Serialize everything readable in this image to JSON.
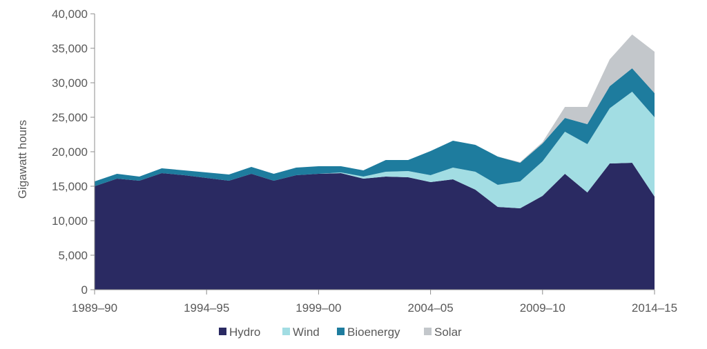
{
  "chart_data": {
    "type": "area",
    "stacked": true,
    "title": "",
    "xlabel": "",
    "ylabel": "Gigawatt hours",
    "ylim": [
      0,
      40000
    ],
    "yticks": [
      0,
      5000,
      10000,
      15000,
      20000,
      25000,
      30000,
      35000,
      40000
    ],
    "ytick_labels": [
      "0",
      "5,000",
      "10,000",
      "15,000",
      "20,000",
      "25,000",
      "30,000",
      "35,000",
      "40,000"
    ],
    "x": [
      "1989–90",
      "1990–91",
      "1991–92",
      "1992–93",
      "1993–94",
      "1994–95",
      "1995–96",
      "1996–97",
      "1997–98",
      "1998–99",
      "1999–00",
      "2000–01",
      "2001–02",
      "2002–03",
      "2003–04",
      "2004–05",
      "2005–06",
      "2006–07",
      "2007–08",
      "2008–09",
      "2009–10",
      "2010–11",
      "2011–12",
      "2012–13",
      "2013–14",
      "2014–15"
    ],
    "xtick_labels": [
      "1989–90",
      "1994–95",
      "1999–00",
      "2004–05",
      "2009–10",
      "2014–15"
    ],
    "grid": false,
    "legend": "bottom",
    "series": [
      {
        "name": "Hydro",
        "color": "#2a2a62",
        "values": [
          15000,
          16100,
          15800,
          16900,
          16600,
          16200,
          15800,
          16800,
          15800,
          16600,
          16800,
          16900,
          16100,
          16400,
          16300,
          15600,
          16000,
          14500,
          12000,
          11800,
          13600,
          16800,
          14100,
          18300,
          18400,
          13500
        ]
      },
      {
        "name": "Wind",
        "color": "#a2dde3",
        "values": [
          0,
          0,
          0,
          0,
          0,
          0,
          0,
          0,
          0,
          0,
          0,
          100,
          300,
          700,
          900,
          1000,
          1700,
          2600,
          3200,
          3900,
          5000,
          6100,
          7000,
          8000,
          10300,
          11500
        ]
      },
      {
        "name": "Bioenergy",
        "color": "#1e7c9e",
        "values": [
          700,
          700,
          600,
          700,
          700,
          800,
          900,
          1000,
          1000,
          1100,
          1100,
          900,
          900,
          1700,
          1600,
          3500,
          3900,
          3900,
          4100,
          2700,
          2600,
          2000,
          2900,
          3200,
          3400,
          3500
        ]
      },
      {
        "name": "Solar",
        "color": "#c3c7cb",
        "values": [
          0,
          0,
          0,
          0,
          0,
          0,
          0,
          0,
          0,
          0,
          0,
          0,
          0,
          0,
          0,
          0,
          0,
          0,
          0,
          100,
          200,
          1600,
          2500,
          3900,
          4900,
          6000
        ]
      }
    ]
  }
}
